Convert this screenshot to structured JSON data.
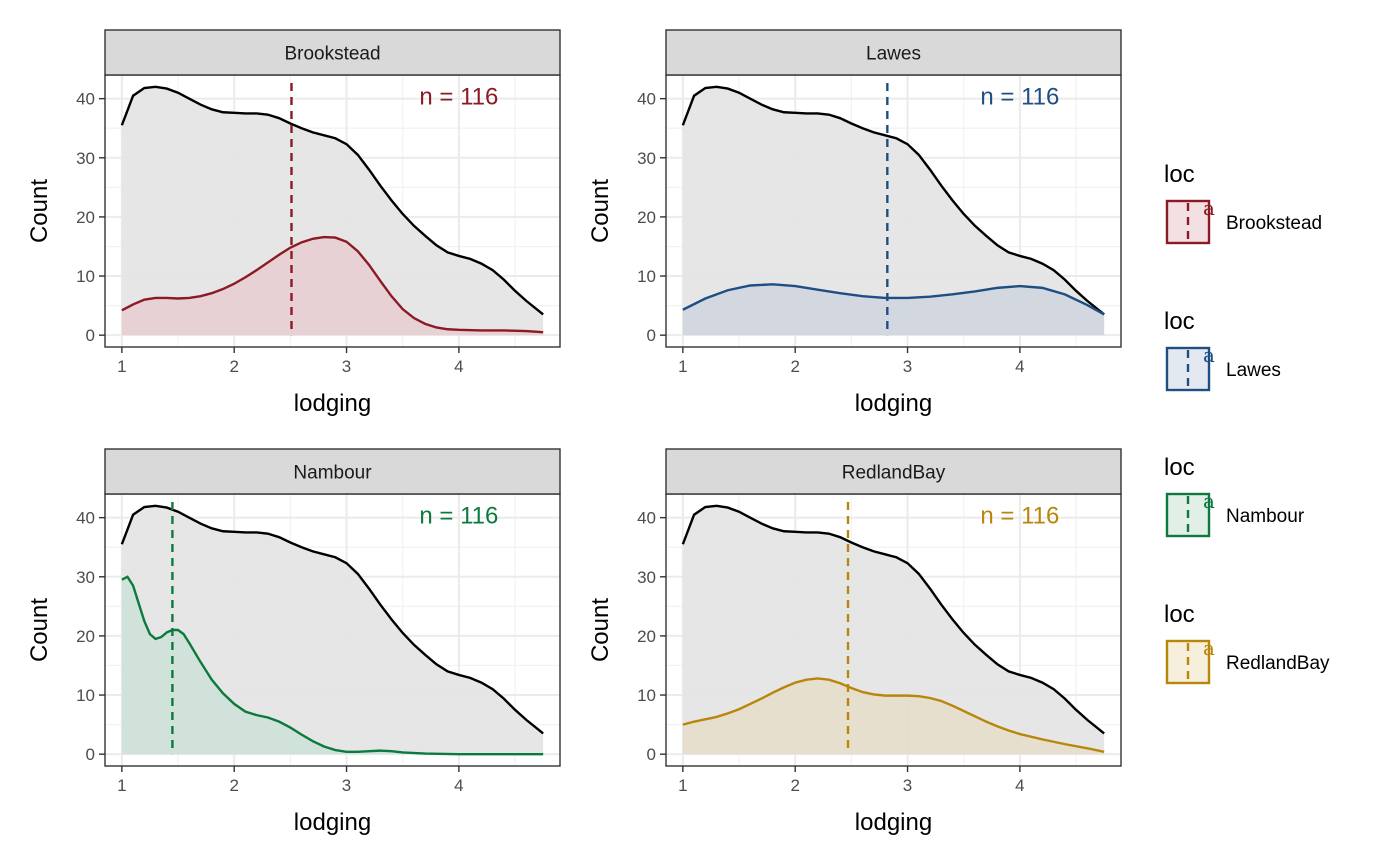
{
  "chart_data": {
    "type": "area",
    "layout": "facet-grid-2x2",
    "xlabel": "lodging",
    "ylabel": "Count",
    "xlim": [
      0.85,
      4.9
    ],
    "ylim": [
      -2,
      44
    ],
    "x_ticks": [
      1,
      2,
      3,
      4
    ],
    "y_ticks": [
      0,
      10,
      20,
      30,
      40
    ],
    "grid": true,
    "legend_position": "right",
    "background_series": {
      "color": "#000000",
      "fill": "#e5e5e5",
      "x": [
        1.0,
        1.1,
        1.2,
        1.3,
        1.4,
        1.5,
        1.6,
        1.7,
        1.8,
        1.9,
        2.0,
        2.1,
        2.2,
        2.3,
        2.4,
        2.5,
        2.6,
        2.7,
        2.8,
        2.9,
        3.0,
        3.1,
        3.2,
        3.3,
        3.4,
        3.5,
        3.6,
        3.7,
        3.8,
        3.9,
        4.0,
        4.1,
        4.2,
        4.3,
        4.4,
        4.5,
        4.6,
        4.75
      ],
      "y": [
        35.5,
        40.5,
        41.8,
        42.0,
        41.7,
        41.0,
        40.0,
        39.0,
        38.2,
        37.7,
        37.6,
        37.5,
        37.5,
        37.3,
        36.7,
        35.8,
        35.0,
        34.3,
        33.8,
        33.3,
        32.3,
        30.5,
        28.0,
        25.3,
        22.8,
        20.5,
        18.5,
        16.8,
        15.2,
        14.0,
        13.4,
        12.9,
        12.1,
        11.0,
        9.4,
        7.5,
        5.8,
        3.5
      ]
    },
    "panels": [
      {
        "strip": "Brookstead",
        "color": "#8b1a24",
        "fill": "#e8cdd0",
        "mean": 2.51,
        "annotation": "n =  116",
        "x": [
          1.0,
          1.1,
          1.2,
          1.3,
          1.4,
          1.5,
          1.6,
          1.7,
          1.8,
          1.9,
          2.0,
          2.1,
          2.2,
          2.3,
          2.4,
          2.5,
          2.6,
          2.7,
          2.8,
          2.9,
          3.0,
          3.1,
          3.2,
          3.3,
          3.4,
          3.5,
          3.6,
          3.7,
          3.8,
          3.9,
          4.0,
          4.2,
          4.4,
          4.6,
          4.75
        ],
        "y": [
          4.2,
          5.2,
          6.0,
          6.3,
          6.3,
          6.2,
          6.3,
          6.6,
          7.1,
          7.8,
          8.7,
          9.8,
          11.0,
          12.3,
          13.6,
          14.8,
          15.7,
          16.3,
          16.6,
          16.5,
          15.8,
          14.2,
          11.9,
          9.2,
          6.6,
          4.4,
          2.9,
          1.9,
          1.3,
          1.0,
          0.9,
          0.8,
          0.8,
          0.7,
          0.5
        ]
      },
      {
        "strip": "Lawes",
        "color": "#1f4e82",
        "fill": "#cfd5de",
        "mean": 2.82,
        "annotation": "n =  116",
        "x": [
          1.0,
          1.2,
          1.4,
          1.6,
          1.8,
          2.0,
          2.2,
          2.4,
          2.6,
          2.8,
          3.0,
          3.2,
          3.4,
          3.6,
          3.8,
          4.0,
          4.2,
          4.4,
          4.6,
          4.75
        ],
        "y": [
          4.3,
          6.2,
          7.6,
          8.4,
          8.6,
          8.3,
          7.7,
          7.1,
          6.6,
          6.3,
          6.3,
          6.5,
          6.9,
          7.4,
          8.0,
          8.3,
          8.0,
          6.9,
          5.1,
          3.5
        ]
      },
      {
        "strip": "Nambour",
        "color": "#0c7a3e",
        "fill": "#cde1d7",
        "mean": 1.45,
        "annotation": "n =  116",
        "x": [
          1.0,
          1.05,
          1.1,
          1.15,
          1.2,
          1.25,
          1.3,
          1.35,
          1.4,
          1.45,
          1.5,
          1.55,
          1.6,
          1.7,
          1.8,
          1.9,
          2.0,
          2.1,
          2.2,
          2.3,
          2.4,
          2.5,
          2.6,
          2.7,
          2.8,
          2.9,
          3.0,
          3.1,
          3.2,
          3.3,
          3.4,
          3.5,
          3.7,
          4.0,
          4.4,
          4.75
        ],
        "y": [
          29.5,
          30.0,
          28.5,
          25.5,
          22.5,
          20.3,
          19.5,
          19.8,
          20.6,
          21.0,
          21.0,
          20.3,
          18.8,
          15.6,
          12.6,
          10.3,
          8.5,
          7.2,
          6.6,
          6.2,
          5.5,
          4.5,
          3.3,
          2.2,
          1.3,
          0.7,
          0.4,
          0.4,
          0.5,
          0.6,
          0.5,
          0.3,
          0.1,
          0.0,
          0.0,
          0.0
        ]
      },
      {
        "strip": "RedlandBay",
        "color": "#b8860b",
        "fill": "#e6ddc8",
        "mean": 2.47,
        "annotation": "n =  116",
        "x": [
          1.0,
          1.1,
          1.2,
          1.3,
          1.4,
          1.5,
          1.6,
          1.7,
          1.8,
          1.9,
          2.0,
          2.1,
          2.2,
          2.3,
          2.4,
          2.5,
          2.6,
          2.7,
          2.8,
          2.9,
          3.0,
          3.1,
          3.2,
          3.3,
          3.4,
          3.5,
          3.6,
          3.7,
          3.8,
          3.9,
          4.0,
          4.2,
          4.4,
          4.6,
          4.75
        ],
        "y": [
          5.0,
          5.5,
          5.9,
          6.3,
          6.9,
          7.6,
          8.5,
          9.4,
          10.4,
          11.3,
          12.1,
          12.6,
          12.8,
          12.6,
          12.0,
          11.2,
          10.5,
          10.1,
          9.9,
          9.9,
          9.9,
          9.8,
          9.5,
          9.0,
          8.2,
          7.3,
          6.4,
          5.5,
          4.7,
          4.0,
          3.4,
          2.5,
          1.7,
          1.0,
          0.4
        ]
      }
    ],
    "legend": [
      {
        "title": "loc",
        "label": "Brookstead",
        "color": "#8b1a24",
        "fill": "#f3e0e2"
      },
      {
        "title": "loc",
        "label": "Lawes",
        "color": "#1f4e82",
        "fill": "#e4e9f1"
      },
      {
        "title": "loc",
        "label": "Nambour",
        "color": "#0c7a3e",
        "fill": "#e2efe7"
      },
      {
        "title": "loc",
        "label": "RedlandBay",
        "color": "#b8860b",
        "fill": "#f6efdc"
      }
    ],
    "legend_key_glyph": "a"
  }
}
